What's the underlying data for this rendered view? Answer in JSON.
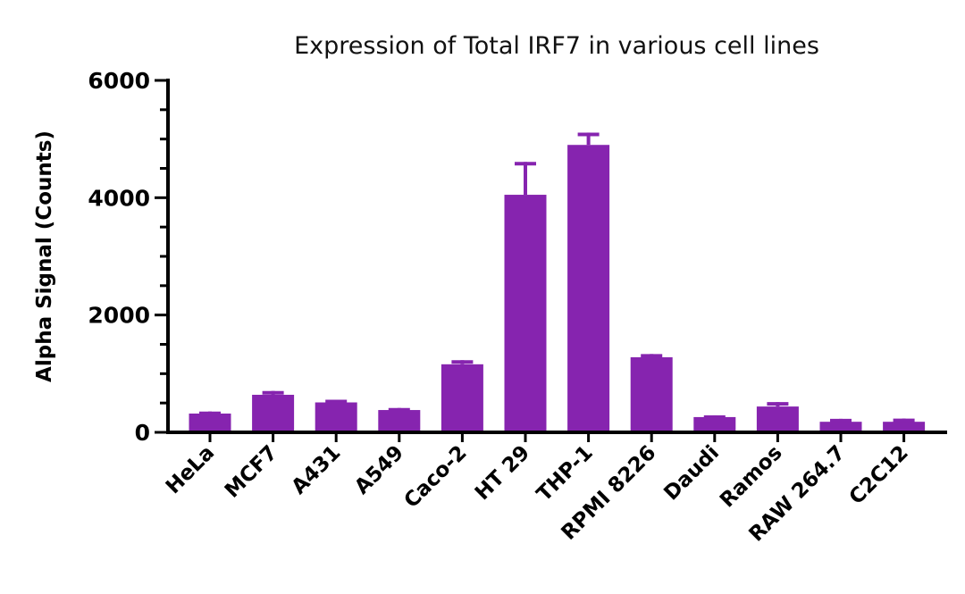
{
  "chart_data": {
    "type": "bar",
    "title": "Expression of Total IRF7 in various cell lines",
    "xlabel": "",
    "ylabel": "Alpha Signal (Counts)",
    "ylim": [
      0,
      6000
    ],
    "yticks": [
      0,
      2000,
      4000,
      6000
    ],
    "ytick_labels": [
      "0",
      "2000",
      "4000",
      "6000"
    ],
    "y_minor_tick_step": 500,
    "grid": false,
    "legend": null,
    "bar_color": "#8624AF",
    "categories": [
      "HeLa",
      "MCF7",
      "A431",
      "A549",
      "Caco-2",
      "HT 29",
      "THP-1",
      "RPMI 8226",
      "Daudi",
      "Ramos",
      "RAW 264.7",
      "C2C12"
    ],
    "values": [
      320,
      640,
      510,
      380,
      1160,
      4050,
      4900,
      1280,
      260,
      440,
      180,
      180
    ],
    "error_upper": [
      355,
      705,
      555,
      415,
      1230,
      4610,
      5110,
      1335,
      290,
      515,
      230,
      235
    ]
  }
}
